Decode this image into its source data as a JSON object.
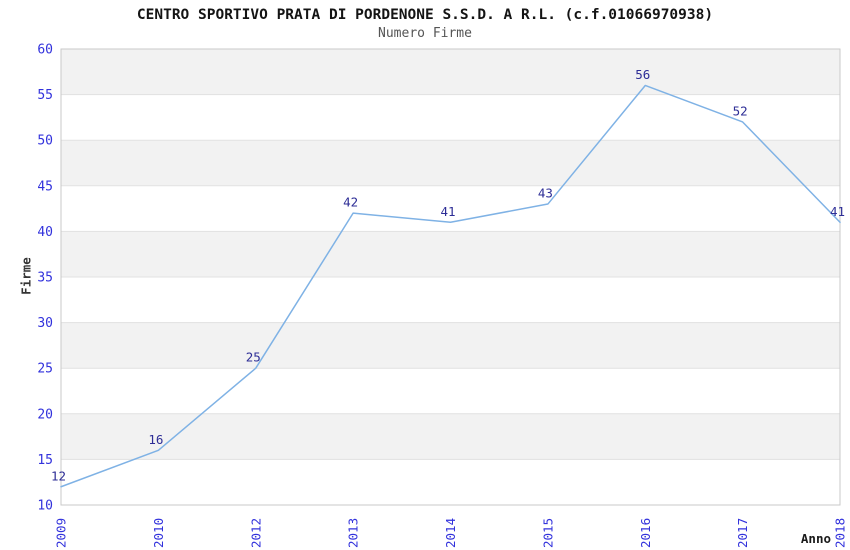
{
  "chart_data": {
    "type": "line",
    "title": "CENTRO SPORTIVO PRATA DI PORDENONE S.S.D. A R.L. (c.f.01066970938)",
    "subtitle": "Numero Firme",
    "xlabel": "Anno",
    "ylabel": "Firme",
    "categories": [
      "2009",
      "2010",
      "2012",
      "2013",
      "2014",
      "2015",
      "2016",
      "2017",
      "2018"
    ],
    "values": [
      12,
      16,
      25,
      42,
      41,
      43,
      56,
      52,
      41
    ],
    "ylim": [
      10,
      60
    ],
    "ytick_step": 5,
    "yticks": [
      10,
      15,
      20,
      25,
      30,
      35,
      40,
      45,
      50,
      55,
      60
    ],
    "grid": true,
    "striped_bands": true,
    "legend": "none",
    "markers": "none",
    "data_labels": true,
    "colors": {
      "line": "#7fb2e5",
      "tick_label": "#3232dc",
      "data_label": "#2d2d96",
      "stripe": "#f2f2f2",
      "gridline": "#e1e1e1",
      "plot_border": "#c9c9c9",
      "title": "#141414",
      "subtitle": "#555555"
    }
  }
}
